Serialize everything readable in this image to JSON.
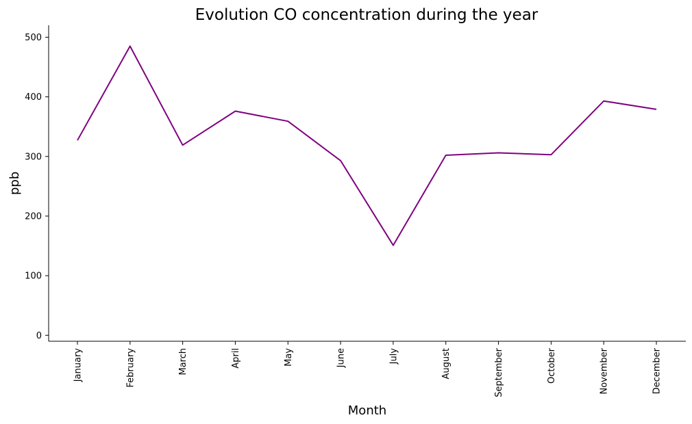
{
  "chart_data": {
    "type": "line",
    "title": "Evolution CO concentration during the year",
    "xlabel": "Month",
    "ylabel": "ppb",
    "categories": [
      "January",
      "February",
      "March",
      "April",
      "May",
      "June",
      "July",
      "August",
      "September",
      "October",
      "November",
      "December"
    ],
    "series": [
      {
        "values": [
          327,
          485,
          319,
          376,
          359,
          293,
          151,
          302,
          306,
          303,
          393,
          379
        ]
      }
    ],
    "ylim": [
      -10,
      520
    ],
    "yticks": [
      0,
      100,
      200,
      300,
      400,
      500
    ],
    "grid": false,
    "line_color": "#800080"
  }
}
